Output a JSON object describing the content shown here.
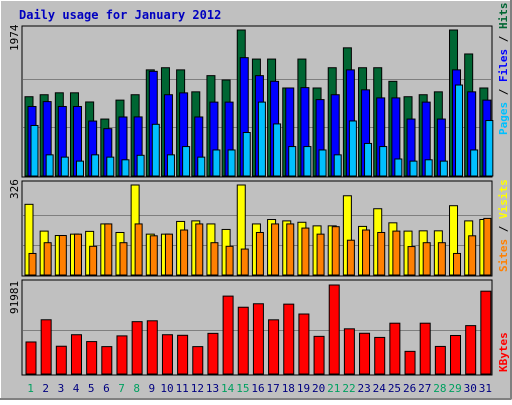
{
  "title": "Daily usage for January 2012",
  "colors": {
    "background": "#c0c0c0",
    "title_text": "#0000c0",
    "border": "#808080",
    "grid": "#7f7f7f",
    "hits": "#006633",
    "files": "#0000ff",
    "pages": "#00c0ff",
    "visits": "#ffff00",
    "sites": "#ff8000",
    "kbytes": "#ff0000",
    "weekend_day": "#00a060",
    "weekday": "#000080"
  },
  "chart_data": [
    {
      "type": "bar",
      "name": "hits-files-pages",
      "y_max_label": "1974",
      "ylim": [
        0,
        1974
      ],
      "legend": [
        {
          "key": "pages",
          "label": "Pages"
        },
        {
          "key": "sep1",
          "label": "/"
        },
        {
          "key": "files",
          "label": "Files"
        },
        {
          "key": "sep2",
          "label": "/"
        },
        {
          "key": "hits",
          "label": "Hits"
        }
      ],
      "categories": [
        "1",
        "2",
        "3",
        "4",
        "5",
        "6",
        "7",
        "8",
        "9",
        "10",
        "11",
        "12",
        "13",
        "14",
        "15",
        "16",
        "17",
        "18",
        "19",
        "20",
        "21",
        "22",
        "23",
        "24",
        "25",
        "26",
        "27",
        "28",
        "29",
        "30",
        "31"
      ],
      "series": [
        {
          "name": "Hits",
          "color_key": "hits",
          "values": [
            1072,
            1099,
            1125,
            1125,
            1001,
            770,
            1026,
            1099,
            1435,
            1464,
            1435,
            1138,
            1357,
            1298,
            1974,
            1581,
            1581,
            1190,
            1581,
            1190,
            1464,
            1733,
            1464,
            1464,
            1280,
            1072,
            1099,
            1138,
            1974,
            1650,
            1190
          ]
        },
        {
          "name": "Files",
          "color_key": "files",
          "values": [
            940,
            1006,
            940,
            940,
            743,
            640,
            798,
            799,
            1415,
            1099,
            1124,
            798,
            999,
            999,
            1600,
            1357,
            1280,
            1190,
            1195,
            1033,
            1099,
            1435,
            1165,
            1056,
            1056,
            770,
            999,
            770,
            1435,
            1138,
            1026
          ]
        },
        {
          "name": "Pages",
          "color_key": "pages",
          "values": [
            683,
            286,
            255,
            201,
            286,
            255,
            219,
            280,
            699,
            286,
            398,
            255,
            352,
            352,
            588,
            999,
            704,
            398,
            398,
            352,
            286,
            744,
            440,
            398,
            230,
            201,
            219,
            201,
            1230,
            352,
            750
          ]
        }
      ]
    },
    {
      "type": "bar",
      "name": "visits-sites",
      "y_max_label": "326",
      "ylim": [
        0,
        326
      ],
      "legend": [
        {
          "key": "sites",
          "label": "Sites"
        },
        {
          "key": "sep",
          "label": "/"
        },
        {
          "key": "visits",
          "label": "Visits"
        }
      ],
      "categories": [
        "1",
        "2",
        "3",
        "4",
        "5",
        "6",
        "7",
        "8",
        "9",
        "10",
        "11",
        "12",
        "13",
        "14",
        "15",
        "16",
        "17",
        "18",
        "19",
        "20",
        "21",
        "22",
        "23",
        "24",
        "25",
        "26",
        "27",
        "28",
        "29",
        "30",
        "31"
      ],
      "series": [
        {
          "name": "Visits",
          "color_key": "visits",
          "values": [
            256,
            159,
            143,
            148,
            158,
            185,
            154,
            326,
            148,
            148,
            194,
            196,
            185,
            165,
            326,
            185,
            201,
            196,
            191,
            178,
            178,
            287,
            176,
            240,
            189,
            159,
            160,
            160,
            251,
            196,
            201
          ]
        },
        {
          "name": "Sites",
          "color_key": "sites",
          "values": [
            78,
            117,
            143,
            148,
            104,
            185,
            117,
            185,
            142,
            148,
            163,
            185,
            117,
            104,
            94,
            154,
            185,
            185,
            170,
            148,
            175,
            126,
            163,
            154,
            159,
            103,
            117,
            117,
            78,
            142,
            205
          ]
        }
      ]
    },
    {
      "type": "bar",
      "name": "kbytes",
      "y_max_label": "91981",
      "ylim": [
        0,
        91981
      ],
      "legend": [
        {
          "key": "kbytes",
          "label": "KBytes"
        }
      ],
      "categories": [
        "1",
        "2",
        "3",
        "4",
        "5",
        "6",
        "7",
        "8",
        "9",
        "10",
        "11",
        "12",
        "13",
        "14",
        "15",
        "16",
        "17",
        "18",
        "19",
        "20",
        "21",
        "22",
        "23",
        "24",
        "25",
        "26",
        "27",
        "28",
        "29",
        "30",
        "31"
      ],
      "series": [
        {
          "name": "KBytes",
          "color_key": "kbytes",
          "values": [
            33100,
            56050,
            28700,
            40600,
            33500,
            28300,
            39400,
            54100,
            55000,
            40600,
            40000,
            28300,
            42000,
            80500,
            69000,
            72600,
            56000,
            72200,
            62000,
            38900,
            91981,
            46700,
            42100,
            37800,
            52500,
            23400,
            52500,
            28500,
            39800,
            50000,
            85600
          ]
        }
      ]
    }
  ],
  "x_axis": {
    "labels": [
      "1",
      "2",
      "3",
      "4",
      "5",
      "6",
      "7",
      "8",
      "9",
      "10",
      "11",
      "12",
      "13",
      "14",
      "15",
      "16",
      "17",
      "18",
      "19",
      "20",
      "21",
      "22",
      "23",
      "24",
      "25",
      "26",
      "27",
      "28",
      "29",
      "30",
      "31"
    ],
    "weekend": [
      true,
      false,
      false,
      false,
      false,
      false,
      true,
      true,
      false,
      false,
      false,
      false,
      false,
      true,
      true,
      false,
      false,
      false,
      false,
      false,
      true,
      true,
      false,
      false,
      false,
      false,
      false,
      true,
      true,
      false,
      false
    ]
  }
}
